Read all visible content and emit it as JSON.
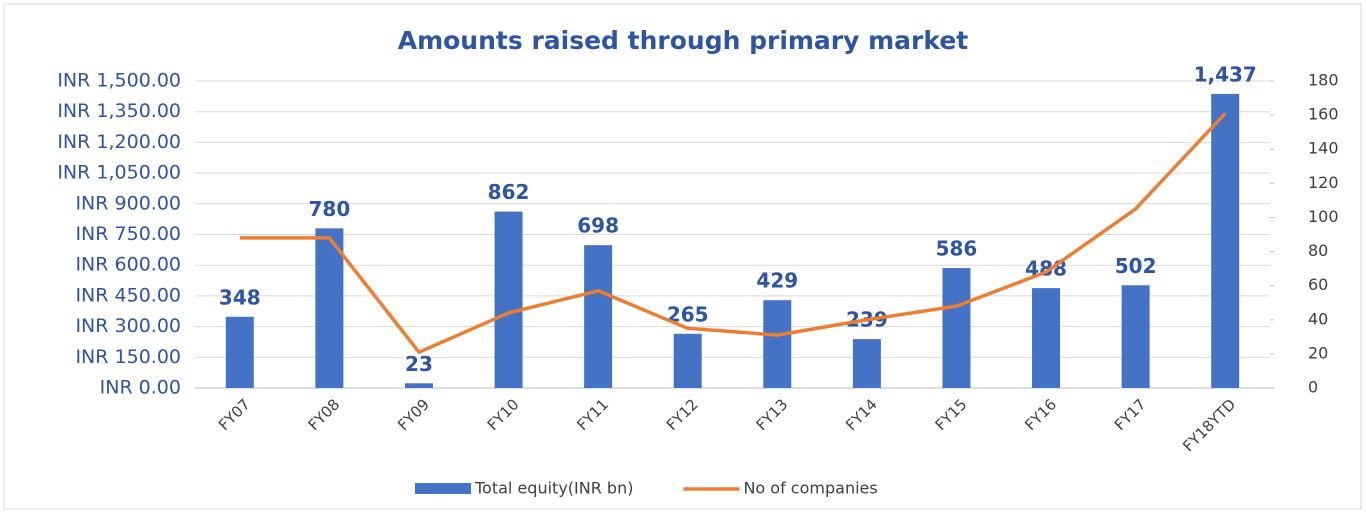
{
  "chart_data": {
    "type": "combo",
    "title": "Amounts raised through primary market",
    "categories": [
      "FY07",
      "FY08",
      "FY09",
      "FY10",
      "FY11",
      "FY12",
      "FY13",
      "FY14",
      "FY15",
      "FY16",
      "FY17",
      "FY18YTD"
    ],
    "series": [
      {
        "name": "Total equity(INR bn)",
        "type": "bar",
        "color": "#4472c4",
        "values": [
          348,
          780,
          23,
          862,
          698,
          265,
          429,
          239,
          586,
          488,
          502,
          1437
        ],
        "value_labels": [
          "348",
          "780",
          "23",
          "862",
          "698",
          "265",
          "429",
          "239",
          "586",
          "488",
          "502",
          "1,437"
        ]
      },
      {
        "name": "No of companies",
        "type": "line",
        "axis": "y2",
        "color": "#ed7d31",
        "values": [
          88,
          88,
          21,
          44,
          57,
          35,
          31,
          40,
          48,
          68,
          105,
          161
        ]
      }
    ],
    "ylim": [
      0,
      1500
    ],
    "yticks": [
      {
        "value": 0,
        "label": "INR 0.00"
      },
      {
        "value": 150,
        "label": "INR 150.00"
      },
      {
        "value": 300,
        "label": "INR 300.00"
      },
      {
        "value": 450,
        "label": "INR 450.00"
      },
      {
        "value": 600,
        "label": "INR 600.00"
      },
      {
        "value": 750,
        "label": "INR 750.00"
      },
      {
        "value": 900,
        "label": "INR 900.00"
      },
      {
        "value": 1050,
        "label": "INR 1,050.00"
      },
      {
        "value": 1200,
        "label": "INR 1,200.00"
      },
      {
        "value": 1350,
        "label": "INR 1,350.00"
      },
      {
        "value": 1500,
        "label": "INR 1,500.00"
      }
    ],
    "y2lim": [
      0,
      180
    ],
    "y2ticks": [
      0,
      20,
      40,
      60,
      80,
      100,
      120,
      140,
      160,
      180
    ],
    "grid": true,
    "legend": "bottom"
  }
}
